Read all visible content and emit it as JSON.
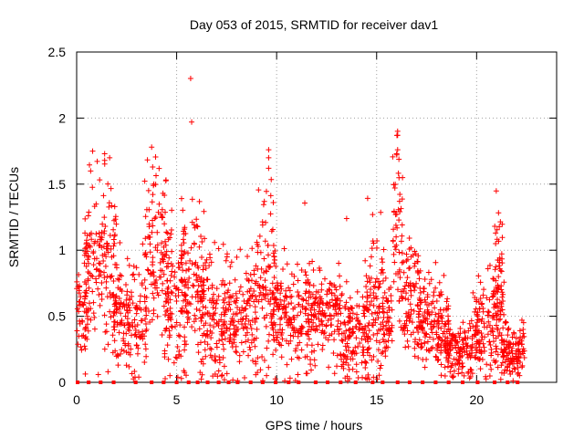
{
  "chart_data": {
    "type": "scatter",
    "title": "Day 053 of 2015, SRMTID for receiver dav1",
    "xlabel": "GPS time / hours",
    "ylabel": "SRMTID / TECUs",
    "xlim": [
      0,
      24
    ],
    "ylim": [
      0,
      2.5
    ],
    "xticks": [
      0,
      5,
      10,
      15,
      20
    ],
    "xtick_labels": [
      "0",
      "5",
      "10",
      "15",
      "20"
    ],
    "yticks": [
      0,
      0.5,
      1,
      1.5,
      2,
      2.5
    ],
    "ytick_labels": [
      "0",
      "0.5",
      "1",
      "1.5",
      "2",
      "2.5"
    ],
    "grid": true,
    "marker": "+",
    "color": "#ff0000",
    "clusters": [
      {
        "t": [
          0.0,
          0.6
        ],
        "mean": 0.5,
        "sd": 0.15
      },
      {
        "t": [
          0.4,
          1.2
        ],
        "mean": 0.95,
        "sd": 0.3
      },
      {
        "t": [
          1.2,
          2.0
        ],
        "mean": 0.9,
        "sd": 0.3
      },
      {
        "t": [
          1.8,
          3.5
        ],
        "mean": 0.5,
        "sd": 0.2
      },
      {
        "t": [
          3.4,
          4.6
        ],
        "mean": 0.9,
        "sd": 0.35
      },
      {
        "t": [
          4.4,
          5.5
        ],
        "mean": 0.55,
        "sd": 0.3
      },
      {
        "t": [
          5.2,
          6.4
        ],
        "mean": 0.75,
        "sd": 0.28
      },
      {
        "t": [
          6.2,
          7.4
        ],
        "mean": 0.45,
        "sd": 0.25
      },
      {
        "t": [
          7.3,
          9.0
        ],
        "mean": 0.5,
        "sd": 0.2
      },
      {
        "t": [
          9.0,
          10.0
        ],
        "mean": 0.75,
        "sd": 0.35
      },
      {
        "t": [
          9.8,
          11.6
        ],
        "mean": 0.5,
        "sd": 0.2
      },
      {
        "t": [
          11.5,
          13.2
        ],
        "mean": 0.5,
        "sd": 0.18
      },
      {
        "t": [
          13.2,
          14.6
        ],
        "mean": 0.35,
        "sd": 0.17
      },
      {
        "t": [
          14.4,
          15.4
        ],
        "mean": 0.55,
        "sd": 0.3
      },
      {
        "t": [
          15.3,
          15.8
        ],
        "mean": 0.5,
        "sd": 0.15
      },
      {
        "t": [
          15.8,
          16.3
        ],
        "mean": 1.1,
        "sd": 0.4
      },
      {
        "t": [
          16.2,
          17.2
        ],
        "mean": 0.6,
        "sd": 0.22
      },
      {
        "t": [
          17.0,
          18.6
        ],
        "mean": 0.45,
        "sd": 0.17
      },
      {
        "t": [
          18.4,
          19.8
        ],
        "mean": 0.25,
        "sd": 0.1
      },
      {
        "t": [
          19.8,
          21.4
        ],
        "mean": 0.4,
        "sd": 0.2
      },
      {
        "t": [
          20.8,
          21.3
        ],
        "mean": 0.75,
        "sd": 0.25
      },
      {
        "t": [
          21.2,
          22.4
        ],
        "mean": 0.25,
        "sd": 0.1
      }
    ],
    "peaks": [
      {
        "x": 5.7,
        "y": 2.3
      },
      {
        "x": 5.75,
        "y": 1.97
      },
      {
        "x": 3.75,
        "y": 1.78
      },
      {
        "x": 3.8,
        "y": 1.63
      },
      {
        "x": 0.8,
        "y": 1.75
      },
      {
        "x": 0.7,
        "y": 1.6
      },
      {
        "x": 1.4,
        "y": 1.73
      },
      {
        "x": 1.4,
        "y": 1.68
      },
      {
        "x": 1.65,
        "y": 1.7
      },
      {
        "x": 9.6,
        "y": 1.76
      },
      {
        "x": 9.6,
        "y": 1.7
      },
      {
        "x": 9.6,
        "y": 1.62
      },
      {
        "x": 16.05,
        "y": 1.9
      },
      {
        "x": 16.05,
        "y": 1.87
      },
      {
        "x": 16.05,
        "y": 1.76
      },
      {
        "x": 16.0,
        "y": 1.73
      },
      {
        "x": 20.95,
        "y": 1.13
      },
      {
        "x": 20.95,
        "y": 1.05
      },
      {
        "x": 13.5,
        "y": 1.24
      },
      {
        "x": 14.8,
        "y": 1.27
      }
    ],
    "baseline": {
      "x": [
        0.05,
        0.6,
        1.2,
        1.85,
        2.95,
        3.75,
        4.35,
        5.0,
        5.6,
        6.05,
        6.55,
        7.1,
        7.6,
        8.05,
        8.7,
        9.3,
        9.95,
        10.6,
        11.1,
        11.95,
        12.55,
        13.2,
        13.95,
        14.8,
        15.3,
        16.05,
        16.65,
        17.3,
        17.95,
        18.6,
        19.3,
        20.05,
        20.9,
        21.55,
        22.05
      ],
      "y": 0
    }
  }
}
